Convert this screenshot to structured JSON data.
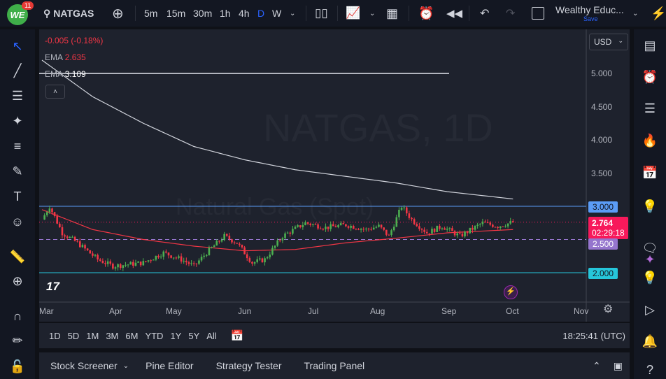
{
  "topbar": {
    "logo": "WE",
    "notifications": "11",
    "symbol": "NATGAS",
    "intervals": [
      "5m",
      "15m",
      "30m",
      "1h",
      "4h",
      "D",
      "W"
    ],
    "active_interval": "D",
    "layout_name": "Wealthy Educ...",
    "save_label": "Save"
  },
  "legend": {
    "change": "-0.005 (-0.18%)",
    "ema1_label": "EMA",
    "ema1_value": "2.635",
    "ema2_label": "EMA",
    "ema2_value": "3.109",
    "watermark_symbol": "NATGAS, 1D",
    "watermark_name": "Natural Gas (Spot)"
  },
  "price_scale": {
    "currency": "USD",
    "ticks": [
      "5.000",
      "4.500",
      "4.000",
      "3.500"
    ],
    "level_3": "3.000",
    "level_25": "2.500",
    "level_2": "2.000",
    "last_price": "2.764",
    "countdown": "02:29:18"
  },
  "time_axis": [
    "Mar",
    "Apr",
    "May",
    "Jun",
    "Jul",
    "Aug",
    "Sep",
    "Oct",
    "Nov"
  ],
  "bottom_bar": {
    "ranges": [
      "1D",
      "5D",
      "1M",
      "3M",
      "6M",
      "YTD",
      "1Y",
      "5Y",
      "All"
    ],
    "clock": "18:25:41 (UTC)"
  },
  "panel_tabs": [
    "Stock Screener",
    "Pine Editor",
    "Strategy Tester",
    "Trading Panel"
  ],
  "colors": {
    "up": "#4caf50",
    "down": "#f23645",
    "ema_fast": "#f23645",
    "ema_slow": "#d1d4dc",
    "level_3": "#5b9cf6",
    "level_25": "#9575cd",
    "level_2": "#26c6da",
    "last": "#f7195b"
  },
  "chart_data": {
    "type": "candlestick",
    "price_anchors": [
      [
        0,
        2.8
      ],
      [
        3,
        3.0
      ],
      [
        8,
        2.6
      ],
      [
        14,
        2.45
      ],
      [
        22,
        2.2
      ],
      [
        28,
        2.1
      ],
      [
        40,
        2.15
      ],
      [
        48,
        2.3
      ],
      [
        55,
        2.2
      ],
      [
        60,
        2.1
      ],
      [
        65,
        2.3
      ],
      [
        72,
        2.55
      ],
      [
        77,
        2.45
      ],
      [
        83,
        2.15
      ],
      [
        88,
        2.2
      ],
      [
        95,
        2.55
      ],
      [
        104,
        2.75
      ],
      [
        112,
        2.68
      ],
      [
        120,
        2.72
      ],
      [
        128,
        2.65
      ],
      [
        133,
        2.7
      ],
      [
        137,
        2.55
      ],
      [
        142,
        3.0
      ],
      [
        146,
        2.8
      ],
      [
        152,
        2.6
      ],
      [
        158,
        2.7
      ],
      [
        165,
        2.55
      ],
      [
        174,
        2.75
      ],
      [
        180,
        2.7
      ],
      [
        186,
        2.76
      ]
    ],
    "ema_fast": [
      [
        0,
        2.95
      ],
      [
        20,
        2.65
      ],
      [
        40,
        2.5
      ],
      [
        60,
        2.4
      ],
      [
        80,
        2.33
      ],
      [
        100,
        2.35
      ],
      [
        120,
        2.45
      ],
      [
        140,
        2.52
      ],
      [
        160,
        2.6
      ],
      [
        186,
        2.65
      ]
    ],
    "ema_slow": [
      [
        0,
        5.2
      ],
      [
        20,
        4.65
      ],
      [
        40,
        4.25
      ],
      [
        60,
        3.9
      ],
      [
        80,
        3.7
      ],
      [
        100,
        3.55
      ],
      [
        120,
        3.45
      ],
      [
        140,
        3.35
      ],
      [
        160,
        3.22
      ],
      [
        186,
        3.11
      ]
    ],
    "levels": [
      3.0,
      2.5,
      2.0
    ],
    "ylim": [
      1.6,
      5.7
    ]
  }
}
